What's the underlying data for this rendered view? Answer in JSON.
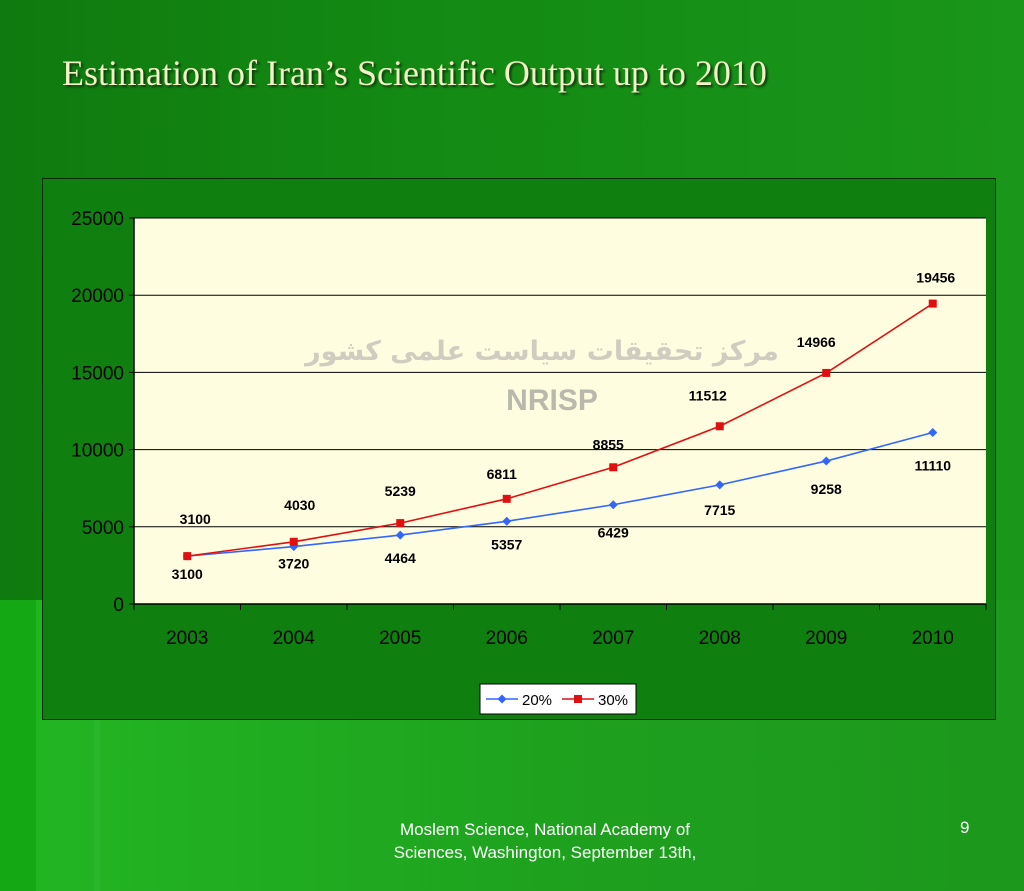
{
  "slide": {
    "title": "Estimation of Iran’s Scientific Output up to 2010",
    "footer": "Moslem Science, National Academy of Sciences, Washington, September 13th,",
    "page_number": "9"
  },
  "watermark": {
    "arabic": "مرکز تحقیقات سیاست علمی کشور",
    "latin": "NRISP"
  },
  "colors": {
    "series_20": "#3366ff",
    "series_30": "#e01010",
    "plot_bg": "#fffde0",
    "background": "#138a13"
  },
  "chart_data": {
    "type": "line",
    "title": "",
    "xlabel": "",
    "ylabel": "",
    "categories": [
      "2003",
      "2004",
      "2005",
      "2006",
      "2007",
      "2008",
      "2009",
      "2010"
    ],
    "ylim": [
      0,
      25000
    ],
    "yticks": [
      "0",
      "5000",
      "10000",
      "15000",
      "20000",
      "25000"
    ],
    "grid": true,
    "legend": "bottom",
    "series": [
      {
        "name": "20%",
        "color": "#3366ff",
        "marker": "diamond",
        "values": [
          3100,
          3720,
          4464,
          5357,
          6429,
          7715,
          9258,
          11110
        ],
        "labels": [
          "3100",
          "3720",
          "4464",
          "5357",
          "6429",
          "7715",
          "9258",
          "11110"
        ]
      },
      {
        "name": "30%",
        "color": "#e01010",
        "marker": "square",
        "values": [
          3100,
          4030,
          5239,
          6811,
          8855,
          11512,
          14966,
          19456
        ],
        "labels": [
          "3100",
          "4030",
          "5239",
          "6811",
          "8855",
          "11512",
          "14966",
          "19456"
        ]
      }
    ]
  }
}
